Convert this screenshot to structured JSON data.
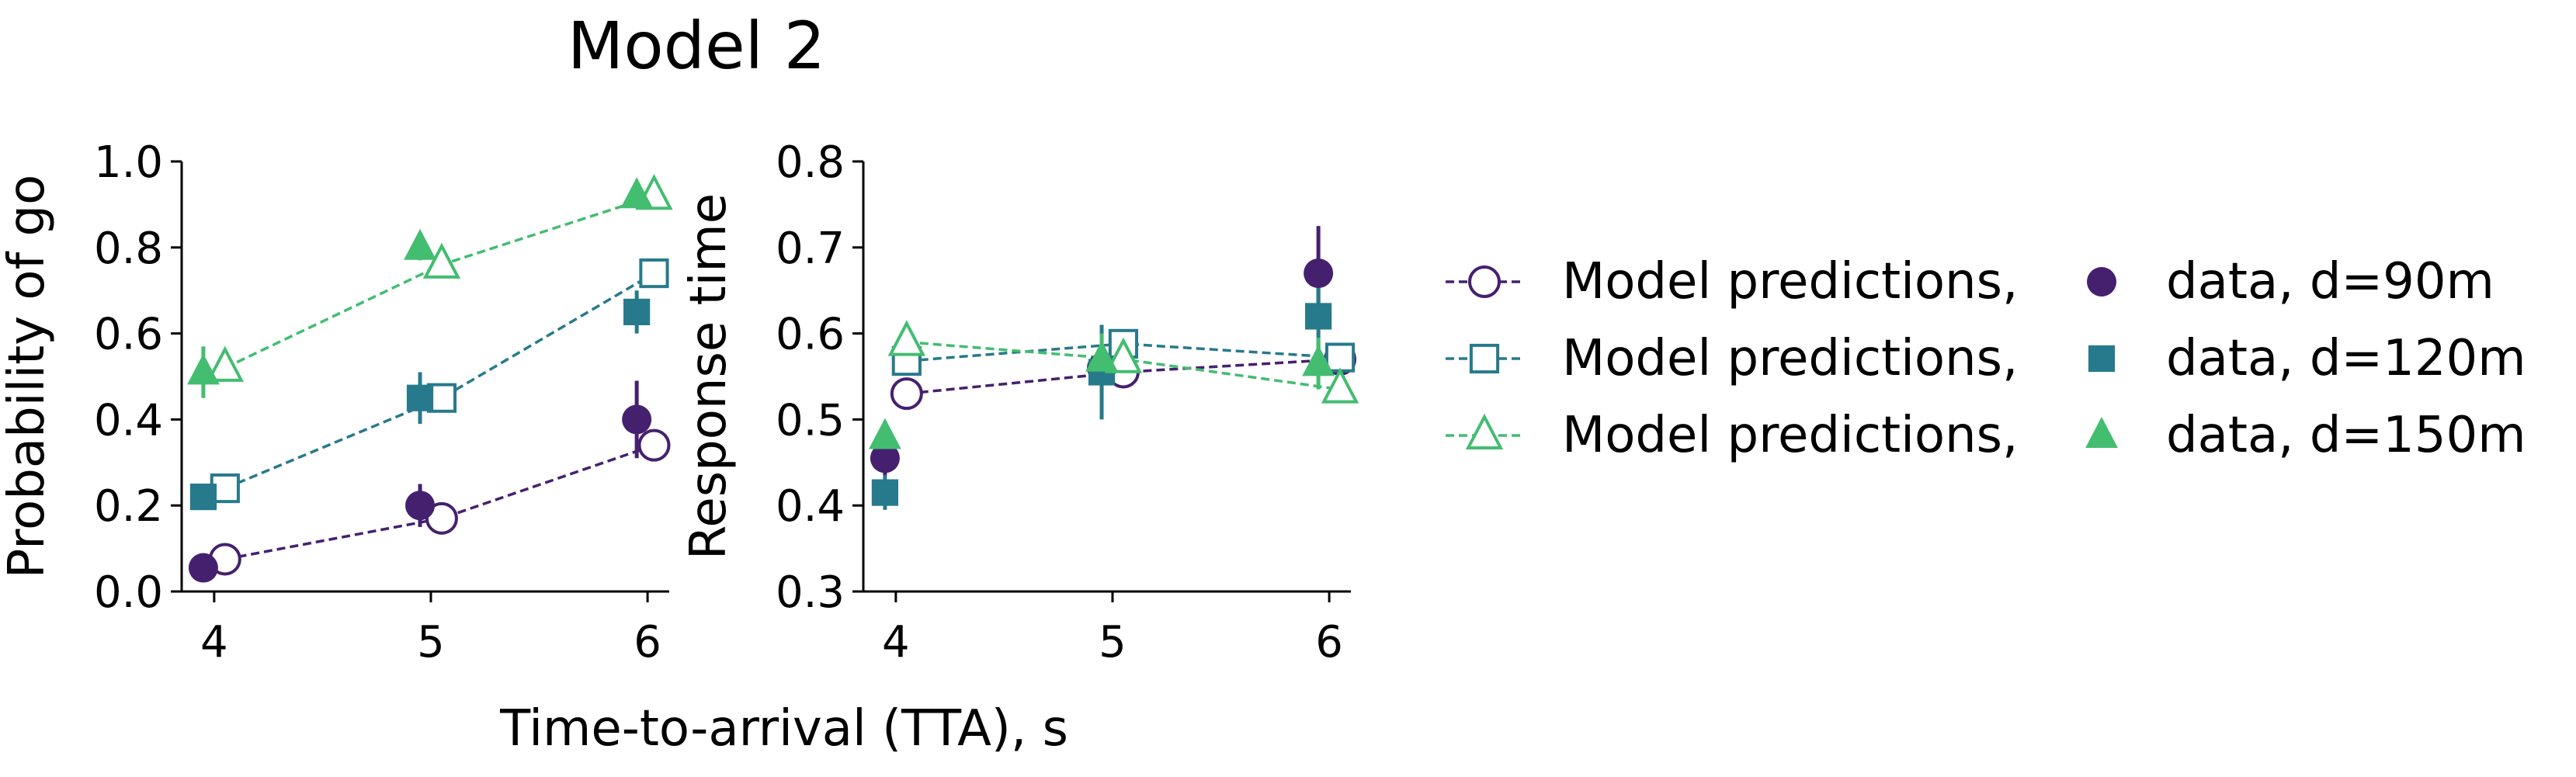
{
  "title": "Model 2",
  "xlabel": "Time-to-arrival (TTA), s",
  "colors": {
    "d90": "#45206f",
    "d120": "#277a8b",
    "d150": "#43bd70"
  },
  "legend": {
    "model_label": "Model predictions,",
    "data_labels": [
      "data, d=90m",
      "data, d=120m",
      "data, d=150m"
    ]
  },
  "chart_data": [
    {
      "type": "line",
      "ylabel": "Probability of go",
      "xlim": [
        3.85,
        6.1
      ],
      "ylim": [
        0.0,
        1.0
      ],
      "xticks": [
        4,
        5,
        6
      ],
      "yticks": [
        "0.0",
        "0.2",
        "0.4",
        "0.6",
        "0.8",
        "1.0"
      ],
      "x": [
        4,
        5,
        6
      ],
      "series": [
        {
          "group": "d90",
          "kind": "model",
          "marker": "circle-open",
          "x": [
            4.05,
            5.05,
            6.03
          ],
          "values": [
            0.075,
            0.17,
            0.34
          ]
        },
        {
          "group": "d90",
          "kind": "data",
          "marker": "circle-filled",
          "x": [
            3.95,
            4.95,
            5.95
          ],
          "values": [
            0.055,
            0.2,
            0.4
          ],
          "errors": [
            0.02,
            0.05,
            0.09
          ]
        },
        {
          "group": "d120",
          "kind": "model",
          "marker": "square-open",
          "x": [
            4.05,
            5.05,
            6.03
          ],
          "values": [
            0.24,
            0.45,
            0.74
          ]
        },
        {
          "group": "d120",
          "kind": "data",
          "marker": "square-filled",
          "x": [
            3.95,
            4.95,
            5.95
          ],
          "values": [
            0.22,
            0.45,
            0.65
          ],
          "errors": [
            0.03,
            0.06,
            0.05
          ]
        },
        {
          "group": "d150",
          "kind": "model",
          "marker": "triangle-open",
          "x": [
            4.05,
            5.05,
            6.03
          ],
          "values": [
            0.52,
            0.76,
            0.92
          ]
        },
        {
          "group": "d150",
          "kind": "data",
          "marker": "triangle-filled",
          "x": [
            3.95,
            4.95,
            5.95
          ],
          "values": [
            0.51,
            0.8,
            0.92
          ],
          "errors": [
            0.06,
            0.03,
            0.02
          ]
        }
      ]
    },
    {
      "type": "line",
      "ylabel": "Response time",
      "xlim": [
        3.85,
        6.1
      ],
      "ylim": [
        0.3,
        0.8
      ],
      "xticks": [
        4,
        5,
        6
      ],
      "yticks": [
        "0.3",
        "0.4",
        "0.5",
        "0.6",
        "0.7",
        "0.8"
      ],
      "x": [
        4,
        5,
        6
      ],
      "series": [
        {
          "group": "d90",
          "kind": "model",
          "marker": "circle-open",
          "x": [
            4.05,
            5.05,
            6.05
          ],
          "values": [
            0.53,
            0.555,
            0.57
          ]
        },
        {
          "group": "d90",
          "kind": "data",
          "marker": "circle-filled",
          "x": [
            3.95,
            4.95,
            5.95
          ],
          "values": [
            0.455,
            0.56,
            0.67
          ],
          "errors": [
            0.02,
            0.04,
            0.055
          ]
        },
        {
          "group": "d120",
          "kind": "model",
          "marker": "square-open",
          "x": [
            4.05,
            5.05,
            6.05
          ],
          "values": [
            0.568,
            0.588,
            0.572
          ]
        },
        {
          "group": "d120",
          "kind": "data",
          "marker": "square-filled",
          "x": [
            3.95,
            4.95,
            5.95
          ],
          "values": [
            0.415,
            0.555,
            0.62
          ],
          "errors": [
            0.02,
            0.055,
            0.04
          ]
        },
        {
          "group": "d150",
          "kind": "model",
          "marker": "triangle-open",
          "x": [
            4.05,
            5.05,
            6.05
          ],
          "values": [
            0.59,
            0.57,
            0.535
          ]
        },
        {
          "group": "d150",
          "kind": "data",
          "marker": "triangle-filled",
          "x": [
            3.95,
            4.95,
            5.95
          ],
          "values": [
            0.48,
            0.57,
            0.565
          ],
          "errors": [
            0.015,
            0.03,
            0.03
          ]
        }
      ]
    }
  ]
}
